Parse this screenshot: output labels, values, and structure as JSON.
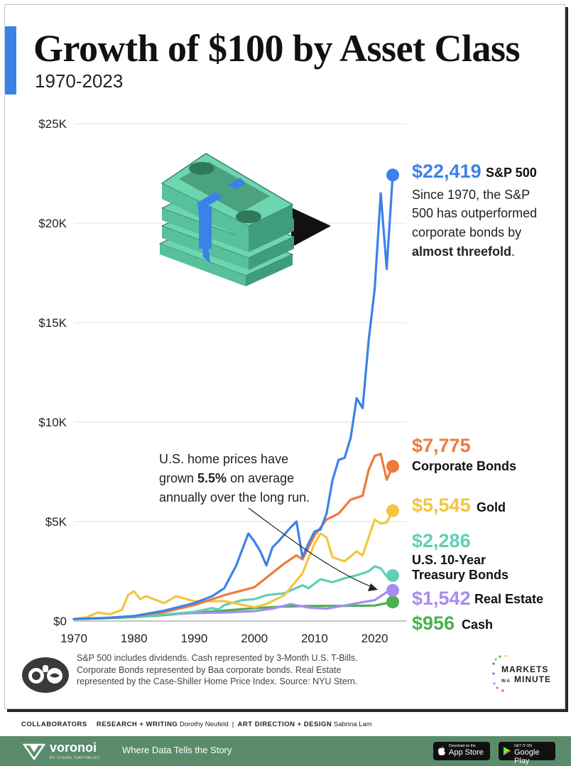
{
  "header": {
    "title": "Growth of $100 by Asset Class",
    "subtitle": "1970-2023",
    "accent_color": "#3b82e8"
  },
  "chart_data": {
    "type": "line",
    "x_ticks": [
      "1970",
      "1980",
      "1990",
      "2000",
      "2010",
      "2020"
    ],
    "y_ticks": [
      "$0",
      "$5K",
      "$10K",
      "$15K",
      "$20K",
      "$25K"
    ],
    "xlim": [
      1970,
      2023
    ],
    "ylim": [
      0,
      25000
    ],
    "grid": true,
    "series": [
      {
        "name": "Cash",
        "color": "#4caf50",
        "final_value": 956,
        "final_label": "$956",
        "x": [
          1970,
          1975,
          1980,
          1985,
          1990,
          1995,
          2000,
          2005,
          2010,
          2015,
          2020,
          2023
        ],
        "y": [
          100,
          140,
          200,
          300,
          420,
          520,
          650,
          730,
          760,
          760,
          780,
          956
        ]
      },
      {
        "name": "Real Estate",
        "color": "#a58cf0",
        "final_value": 1542,
        "final_label": "$1,542",
        "x": [
          1970,
          1975,
          1980,
          1985,
          1990,
          1995,
          2000,
          2003,
          2006,
          2009,
          2012,
          2015,
          2018,
          2020,
          2021,
          2022,
          2023
        ],
        "y": [
          100,
          150,
          250,
          330,
          400,
          430,
          500,
          620,
          850,
          680,
          620,
          780,
          950,
          1050,
          1250,
          1450,
          1542
        ]
      },
      {
        "name": "U.S. 10-Year Treasury Bonds",
        "color": "#5fcfb8",
        "final_value": 2286,
        "final_label": "$2,286",
        "x": [
          1970,
          1975,
          1980,
          1985,
          1990,
          1993,
          1994,
          1995,
          1998,
          2000,
          2002,
          2005,
          2008,
          2009,
          2011,
          2013,
          2015,
          2017,
          2019,
          2020,
          2021,
          2022,
          2023
        ],
        "y": [
          100,
          160,
          220,
          330,
          460,
          650,
          580,
          800,
          1050,
          1100,
          1300,
          1400,
          1800,
          1650,
          2100,
          1950,
          2150,
          2300,
          2500,
          2750,
          2650,
          2250,
          2286
        ]
      },
      {
        "name": "Gold",
        "color": "#f3c53f",
        "final_value": 5545,
        "final_label": "$5,545",
        "x": [
          1970,
          1972,
          1974,
          1976,
          1978,
          1979,
          1980,
          1981,
          1982,
          1985,
          1987,
          1990,
          1995,
          2000,
          2002,
          2005,
          2008,
          2010,
          2011,
          2012,
          2013,
          2015,
          2017,
          2018,
          2019,
          2020,
          2021,
          2022,
          2023
        ],
        "y": [
          100,
          180,
          430,
          340,
          560,
          1300,
          1500,
          1100,
          1250,
          900,
          1250,
          1000,
          1000,
          700,
          850,
          1300,
          2400,
          3900,
          4400,
          4200,
          3200,
          3000,
          3500,
          3300,
          4200,
          5100,
          4900,
          4950,
          5545
        ]
      },
      {
        "name": "Corporate Bonds",
        "color": "#ee7a3a",
        "final_value": 7775,
        "final_label": "$7,775",
        "x": [
          1970,
          1975,
          1980,
          1985,
          1990,
          1995,
          2000,
          2005,
          2007,
          2008,
          2010,
          2012,
          2014,
          2016,
          2018,
          2019,
          2020,
          2021,
          2022,
          2023
        ],
        "y": [
          100,
          150,
          250,
          450,
          800,
          1300,
          1700,
          2900,
          3300,
          3100,
          4300,
          5100,
          5400,
          6100,
          6300,
          7600,
          8300,
          8400,
          7100,
          7775
        ]
      },
      {
        "name": "S&P 500",
        "color": "#3b82e8",
        "final_value": 22419,
        "final_label": "$22,419",
        "x": [
          1970,
          1975,
          1980,
          1985,
          1990,
          1993,
          1995,
          1997,
          1999,
          2000,
          2001,
          2002,
          2003,
          2004,
          2006,
          2007,
          2008,
          2009,
          2010,
          2011,
          2012,
          2013,
          2014,
          2015,
          2016,
          2017,
          2018,
          2019,
          2020,
          2021,
          2022,
          2023
        ],
        "y": [
          100,
          150,
          250,
          520,
          900,
          1250,
          1650,
          2800,
          4400,
          4000,
          3500,
          2800,
          3700,
          4000,
          4700,
          5000,
          3200,
          3900,
          4500,
          4600,
          5400,
          7100,
          8100,
          8200,
          9200,
          11200,
          10700,
          14100,
          16700,
          21500,
          17700,
          22419
        ]
      }
    ]
  },
  "labels": {
    "sp500_desc_1": "Since 1970, the S&P",
    "sp500_desc_2": "500 has outperformed",
    "sp500_desc_3": "corporate bonds by",
    "sp500_desc_4": "almost threefold",
    "sp500_desc_period": ".",
    "annotation_1": "U.S. home prices have",
    "annotation_2_pre": "grown ",
    "annotation_2_bold": "5.5%",
    "annotation_2_post": " on average",
    "annotation_3": "annually over the long run.",
    "treasury_line_1": "U.S. 10-Year",
    "treasury_line_2": "Treasury Bonds"
  },
  "footnote": {
    "line1": "S&P 500 includes dividends. Cash represented by 3-Month U.S. T-Bills.",
    "line2": "Corporate Bonds represented by Baa corporate bonds. Real Estate",
    "line3": "represented by the Case-Shiller Home Price Index. Source: NYU Stern."
  },
  "branding": {
    "mim_line1": "MARKETS",
    "mim_line2a": "IN A",
    "mim_line2b": "MINUTE"
  },
  "collaborators": {
    "heading": "COLLABORATORS",
    "research_label": "RESEARCH + WRITING",
    "research_name": "Dorothy Neufeld",
    "separator": "|",
    "design_label": "ART DIRECTION + DESIGN",
    "design_name": "Sabrina Lam"
  },
  "footer": {
    "brand": "voronoi",
    "brand_sub": "BY VISUAL CAPITALIST",
    "tagline": "Where Data Tells the Story",
    "app_store_small": "Download on the",
    "app_store_big": "App Store",
    "google_small": "GET IT ON",
    "google_big": "Google Play",
    "bg_color": "#5a8c6b"
  }
}
